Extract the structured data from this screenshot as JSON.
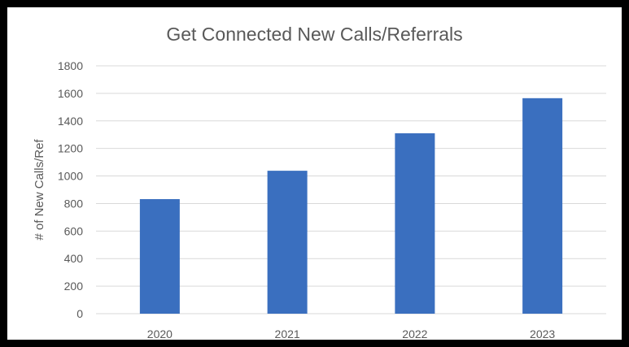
{
  "chart_data": {
    "type": "bar",
    "title": "Get Connected New Calls/Referrals",
    "xlabel": "",
    "ylabel": "# of New Calls/Ref",
    "categories": [
      "2020",
      "2021",
      "2022",
      "2023"
    ],
    "values": [
      832,
      1038,
      1310,
      1565
    ],
    "ylim": [
      0,
      1800
    ],
    "yticks": [
      0,
      200,
      400,
      600,
      800,
      1000,
      1200,
      1400,
      1600,
      1800
    ],
    "grid": true,
    "legend": "none",
    "colors": {
      "bar": "#3A6FBF",
      "gridline": "#D9D9D9",
      "text": "#595959",
      "frame": "#000000"
    }
  }
}
